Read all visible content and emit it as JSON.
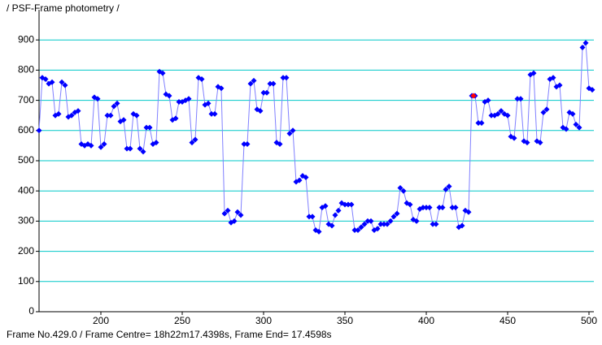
{
  "chart_data": {
    "type": "scatter-line",
    "title": "/ PSF-Frame photometry /",
    "status": "Frame No.429.0 / Frame Centre= 18h22m17.4398s,  Frame End= 17.4598s",
    "xlim": [
      162,
      503
    ],
    "xticks": [
      200,
      250,
      300,
      350,
      400,
      450,
      500
    ],
    "ylim": [
      0,
      1000
    ],
    "yticks": [
      0,
      100,
      200,
      300,
      400,
      500,
      600,
      700,
      800,
      900
    ],
    "grid": true,
    "grid_color": "#00c8c8",
    "line_color": "#8080ff",
    "marker_color": "#0000ff",
    "x": [
      162,
      164,
      166,
      168,
      170,
      172,
      174,
      176,
      178,
      180,
      182,
      184,
      186,
      188,
      190,
      192,
      194,
      196,
      198,
      200,
      202,
      204,
      206,
      208,
      210,
      212,
      214,
      216,
      218,
      220,
      222,
      224,
      226,
      228,
      230,
      232,
      234,
      236,
      238,
      240,
      242,
      244,
      246,
      248,
      250,
      252,
      254,
      256,
      258,
      260,
      262,
      264,
      266,
      268,
      270,
      272,
      274,
      276,
      278,
      280,
      282,
      284,
      286,
      288,
      290,
      292,
      294,
      296,
      298,
      300,
      302,
      304,
      306,
      308,
      310,
      312,
      314,
      316,
      318,
      320,
      322,
      324,
      326,
      328,
      330,
      332,
      334,
      336,
      338,
      340,
      342,
      344,
      346,
      348,
      350,
      352,
      354,
      356,
      358,
      360,
      362,
      364,
      366,
      368,
      370,
      372,
      374,
      376,
      378,
      380,
      382,
      384,
      386,
      388,
      390,
      392,
      394,
      396,
      398,
      400,
      402,
      404,
      406,
      408,
      410,
      412,
      414,
      416,
      418,
      420,
      422,
      424,
      426,
      428,
      430,
      432,
      434,
      436,
      438,
      440,
      442,
      444,
      446,
      448,
      450,
      452,
      454,
      456,
      458,
      460,
      462,
      464,
      466,
      468,
      470,
      472,
      474,
      476,
      478,
      480,
      482,
      484,
      486,
      488,
      490,
      492,
      494,
      496,
      498,
      500,
      502
    ],
    "values": [
      600,
      775,
      770,
      755,
      760,
      650,
      655,
      760,
      750,
      645,
      650,
      660,
      665,
      555,
      550,
      555,
      550,
      710,
      705,
      545,
      555,
      650,
      650,
      680,
      690,
      630,
      635,
      540,
      540,
      655,
      650,
      540,
      530,
      610,
      610,
      555,
      560,
      795,
      790,
      720,
      715,
      635,
      640,
      695,
      695,
      700,
      705,
      560,
      570,
      775,
      770,
      685,
      690,
      655,
      655,
      745,
      740,
      325,
      335,
      295,
      300,
      330,
      320,
      555,
      555,
      755,
      765,
      670,
      665,
      725,
      725,
      755,
      755,
      560,
      555,
      775,
      775,
      590,
      600,
      430,
      435,
      450,
      445,
      315,
      315,
      270,
      265,
      345,
      350,
      290,
      285,
      320,
      335,
      360,
      355,
      355,
      355,
      270,
      270,
      280,
      290,
      300,
      300,
      270,
      275,
      290,
      290,
      290,
      300,
      315,
      325,
      410,
      400,
      360,
      355,
      305,
      300,
      340,
      345,
      345,
      345,
      290,
      290,
      345,
      345,
      405,
      415,
      345,
      345,
      280,
      285,
      335,
      330,
      715,
      715,
      625,
      625,
      695,
      700,
      650,
      650,
      655,
      665,
      655,
      650,
      580,
      575,
      705,
      705,
      565,
      560,
      785,
      790,
      565,
      560,
      660,
      670,
      770,
      775,
      745,
      750,
      610,
      605,
      660,
      655,
      620,
      610,
      875,
      890,
      740,
      735
    ],
    "highlight": {
      "x": 429,
      "y": 715,
      "color": "#ff0000"
    }
  }
}
